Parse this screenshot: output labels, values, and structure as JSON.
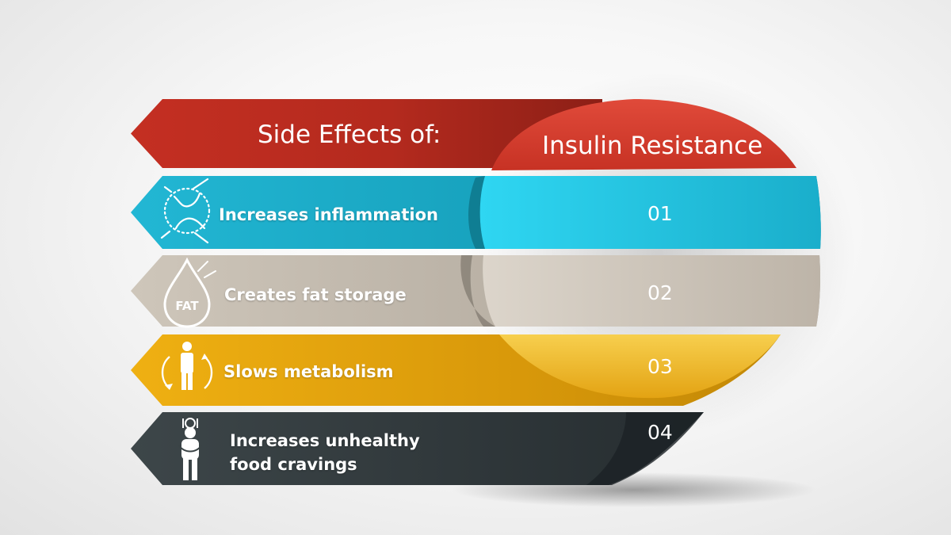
{
  "heading": "Side Effects of:",
  "title": "Insulin Resistance",
  "items": [
    {
      "number": "01",
      "label": "Increases inflammation",
      "icon": "joint-icon",
      "color": "#1fb8d2"
    },
    {
      "number": "02",
      "label": "Creates fat storage",
      "icon": "fat-drop-icon",
      "color": "#c9c0b4"
    },
    {
      "number": "03",
      "label": "Slows metabolism",
      "icon": "person-cycle-icon",
      "color": "#e5a510"
    },
    {
      "number": "04",
      "label": "Increases unhealthy food cravings",
      "icon": "hungry-person-icon",
      "color": "#3a4345"
    }
  ],
  "header_color": "#c93226"
}
